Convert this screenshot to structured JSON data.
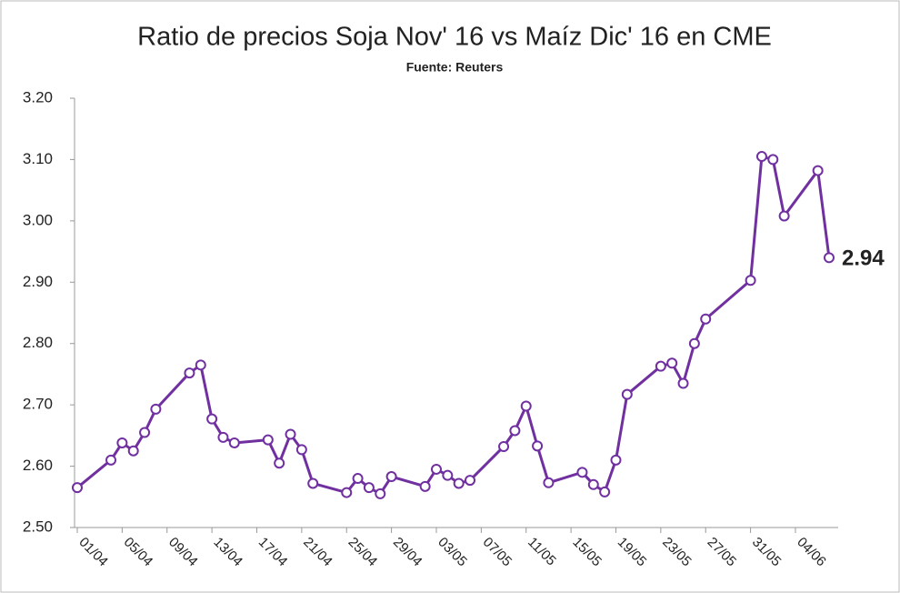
{
  "chart_data": {
    "type": "line",
    "title": "Ratio de precios Soja Nov' 16 vs Maíz Dic' 16 en CME",
    "subtitle": "Fuente: Reuters",
    "x": [
      "01/04",
      "04/04",
      "05/04",
      "06/04",
      "07/04",
      "08/04",
      "11/04",
      "12/04",
      "13/04",
      "14/04",
      "15/04",
      "18/04",
      "19/04",
      "20/04",
      "21/04",
      "22/04",
      "25/04",
      "26/04",
      "27/04",
      "28/04",
      "29/04",
      "02/05",
      "03/05",
      "04/05",
      "05/05",
      "06/05",
      "09/05",
      "10/05",
      "11/05",
      "12/05",
      "13/05",
      "16/05",
      "17/05",
      "18/05",
      "19/05",
      "20/05",
      "23/05",
      "24/05",
      "25/05",
      "26/05",
      "27/05",
      "31/05",
      "01/06",
      "02/06",
      "03/06",
      "06/06",
      "07/06"
    ],
    "series": [
      {
        "name": "Ratio",
        "color": "#7030a0",
        "values": [
          2.565,
          2.61,
          2.638,
          2.625,
          2.655,
          2.693,
          2.752,
          2.765,
          2.677,
          2.647,
          2.638,
          2.643,
          2.605,
          2.652,
          2.627,
          2.572,
          2.557,
          2.58,
          2.565,
          2.555,
          2.583,
          2.567,
          2.595,
          2.585,
          2.572,
          2.577,
          2.632,
          2.658,
          2.698,
          2.633,
          2.573,
          2.59,
          2.57,
          2.558,
          2.61,
          2.717,
          2.763,
          2.768,
          2.735,
          2.8,
          2.84,
          2.903,
          3.105,
          3.1,
          3.008,
          3.082,
          2.94
        ],
        "value_labels": [
          null,
          null,
          null,
          null,
          null,
          null,
          null,
          null,
          null,
          null,
          null,
          null,
          null,
          null,
          null,
          null,
          null,
          null,
          null,
          null,
          null,
          null,
          null,
          null,
          null,
          null,
          null,
          null,
          null,
          null,
          null,
          null,
          null,
          null,
          null,
          null,
          null,
          null,
          null,
          null,
          null,
          null,
          null,
          null,
          null,
          null,
          "2.94"
        ]
      }
    ],
    "xlim": [
      "01/04",
      "07/06"
    ],
    "xticks": [
      "01/04",
      "05/04",
      "09/04",
      "13/04",
      "17/04",
      "21/04",
      "25/04",
      "29/04",
      "03/05",
      "07/05",
      "11/05",
      "15/05",
      "19/05",
      "23/05",
      "27/05",
      "31/05",
      "04/06"
    ],
    "ylim": [
      2.5,
      3.2
    ],
    "yticks": [
      {
        "value": 2.5,
        "label": "2.50"
      },
      {
        "value": 2.6,
        "label": "2.60"
      },
      {
        "value": 2.7,
        "label": "2.70"
      },
      {
        "value": 2.8,
        "label": "2.80"
      },
      {
        "value": 2.9,
        "label": "2.90"
      },
      {
        "value": 3.0,
        "label": "3.00"
      },
      {
        "value": 3.1,
        "label": "3.10"
      },
      {
        "value": 3.2,
        "label": "3.20"
      }
    ],
    "grid": false
  }
}
